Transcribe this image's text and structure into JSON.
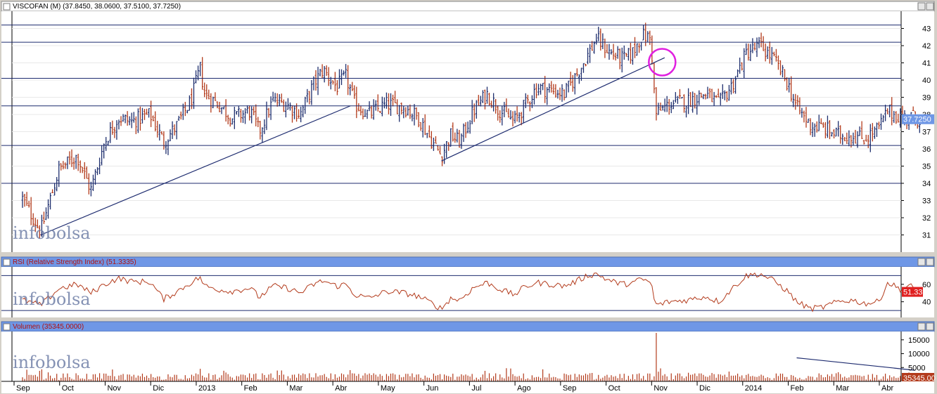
{
  "colors": {
    "up": "#1f2f6e",
    "down": "#b33b1c",
    "hline": "#1c2a6e",
    "trend": "#1c2a6e",
    "rsi": "#b33b1c",
    "volume": "#b33b1c",
    "circle": "#e020e0",
    "panel_header": "#6f97e6",
    "last_price_bg": "#6f97e6",
    "last_rsi_bg": "#e02020"
  },
  "price_panel": {
    "header": "VISCOFAN (M) (37.8450, 38.0600, 37.5100, 37.7250)",
    "last_value": "37.7250",
    "watermark": "infobolsa"
  },
  "rsi_panel": {
    "header": "RSI (Relative Strength Index) (51.3335)",
    "last_value": "51.33",
    "watermark": "infobolsa"
  },
  "volume_panel": {
    "header": "Volumen (35345.0000)",
    "last_value": "35345.00",
    "watermark": "infobolsa"
  },
  "x_labels": [
    "Sep",
    "Oct",
    "Nov",
    "Dic",
    "2013",
    "Feb",
    "Mar",
    "Abr",
    "May",
    "Jun",
    "Jul",
    "Ago",
    "Sep",
    "Oct",
    "Nov",
    "Dic",
    "2014",
    "Feb",
    "Mar",
    "Abr"
  ],
  "chart_data": [
    {
      "type": "ohlc",
      "title": "VISCOFAN (M) (37.8450, 38.0600, 37.5100, 37.7250)",
      "x": [
        "Sep",
        "Oct",
        "Nov",
        "Dic",
        "2013",
        "Feb",
        "Mar",
        "Abr",
        "May",
        "Jun",
        "Jul",
        "Ago",
        "Sep",
        "Oct",
        "Nov",
        "Dic",
        "2014",
        "Feb",
        "Mar",
        "Abr"
      ],
      "x_units": "month (daily bars, Sep 2012 – Abr 2014)",
      "ylim": [
        30,
        44
      ],
      "y_ticks": [
        31,
        32,
        33,
        34,
        35,
        36,
        37,
        38,
        39,
        40,
        41,
        42,
        43
      ],
      "y_axis_side": "right",
      "last": 37.725,
      "close_path": [
        {
          "x": 0.0,
          "y": 33.1
        },
        {
          "x": 0.4,
          "y": 31.2
        },
        {
          "x": 0.8,
          "y": 34.8
        },
        {
          "x": 1.2,
          "y": 35.6
        },
        {
          "x": 1.5,
          "y": 33.6
        },
        {
          "x": 1.8,
          "y": 36.4
        },
        {
          "x": 2.1,
          "y": 37.8
        },
        {
          "x": 2.4,
          "y": 37.6
        },
        {
          "x": 2.8,
          "y": 38.0
        },
        {
          "x": 3.1,
          "y": 36.4
        },
        {
          "x": 3.4,
          "y": 37.4
        },
        {
          "x": 3.7,
          "y": 38.8
        },
        {
          "x": 3.9,
          "y": 40.7
        },
        {
          "x": 4.0,
          "y": 39.2
        },
        {
          "x": 4.3,
          "y": 38.6
        },
        {
          "x": 4.6,
          "y": 37.8
        },
        {
          "x": 5.0,
          "y": 38.2
        },
        {
          "x": 5.2,
          "y": 37.0
        },
        {
          "x": 5.5,
          "y": 38.8
        },
        {
          "x": 5.8,
          "y": 38.6
        },
        {
          "x": 6.1,
          "y": 38.0
        },
        {
          "x": 6.4,
          "y": 39.8
        },
        {
          "x": 6.6,
          "y": 40.6
        },
        {
          "x": 6.9,
          "y": 39.6
        },
        {
          "x": 7.1,
          "y": 40.2
        },
        {
          "x": 7.3,
          "y": 38.6
        },
        {
          "x": 7.6,
          "y": 38.0
        },
        {
          "x": 8.0,
          "y": 38.6
        },
        {
          "x": 8.4,
          "y": 38.4
        },
        {
          "x": 8.7,
          "y": 37.8
        },
        {
          "x": 9.0,
          "y": 36.4
        },
        {
          "x": 9.2,
          "y": 35.6
        },
        {
          "x": 9.4,
          "y": 36.8
        },
        {
          "x": 9.6,
          "y": 36.4
        },
        {
          "x": 9.9,
          "y": 38.2
        },
        {
          "x": 10.2,
          "y": 39.2
        },
        {
          "x": 10.5,
          "y": 38.2
        },
        {
          "x": 10.8,
          "y": 37.6
        },
        {
          "x": 11.0,
          "y": 38.4
        },
        {
          "x": 11.3,
          "y": 39.6
        },
        {
          "x": 11.6,
          "y": 39.4
        },
        {
          "x": 11.9,
          "y": 39.2
        },
        {
          "x": 12.1,
          "y": 40.0
        },
        {
          "x": 12.4,
          "y": 41.4
        },
        {
          "x": 12.6,
          "y": 42.4
        },
        {
          "x": 12.9,
          "y": 41.6
        },
        {
          "x": 13.2,
          "y": 41.2
        },
        {
          "x": 13.4,
          "y": 41.6
        },
        {
          "x": 13.6,
          "y": 42.6
        },
        {
          "x": 13.8,
          "y": 42.4
        },
        {
          "x": 13.9,
          "y": 38.0
        },
        {
          "x": 14.2,
          "y": 38.6
        },
        {
          "x": 14.6,
          "y": 38.8
        },
        {
          "x": 15.0,
          "y": 39.2
        },
        {
          "x": 15.3,
          "y": 38.6
        },
        {
          "x": 15.6,
          "y": 39.8
        },
        {
          "x": 15.9,
          "y": 41.6
        },
        {
          "x": 16.2,
          "y": 42.0
        },
        {
          "x": 16.5,
          "y": 41.2
        },
        {
          "x": 16.8,
          "y": 39.8
        },
        {
          "x": 17.0,
          "y": 38.4
        },
        {
          "x": 17.3,
          "y": 37.4
        },
        {
          "x": 17.6,
          "y": 37.2
        },
        {
          "x": 17.9,
          "y": 36.8
        },
        {
          "x": 18.2,
          "y": 36.8
        },
        {
          "x": 18.5,
          "y": 36.6
        },
        {
          "x": 18.8,
          "y": 37.2
        },
        {
          "x": 19.0,
          "y": 38.2
        },
        {
          "x": 19.3,
          "y": 37.8
        },
        {
          "x": 19.5,
          "y": 37.9
        },
        {
          "x": 19.7,
          "y": 37.725
        }
      ],
      "horizontal_lines": [
        43.2,
        42.2,
        40.1,
        38.5,
        36.2,
        34.0
      ],
      "trendlines": [
        {
          "from": {
            "x": 0.4,
            "y": 31.0
          },
          "to": {
            "x": 7.2,
            "y": 38.5
          }
        },
        {
          "from": {
            "x": 9.2,
            "y": 35.3
          },
          "to": {
            "x": 14.1,
            "y": 41.3
          }
        }
      ],
      "annotation_circle": {
        "x": 14.0,
        "y": 41.0
      }
    },
    {
      "type": "line",
      "title": "RSI (Relative Strength Index) (51.3335)",
      "x": [
        "Sep",
        "Oct",
        "Nov",
        "Dic",
        "2013",
        "Feb",
        "Mar",
        "Abr",
        "May",
        "Jun",
        "Jul",
        "Ago",
        "Sep",
        "Oct",
        "Nov",
        "Dic",
        "2014",
        "Feb",
        "Mar",
        "Abr"
      ],
      "ylim": [
        22,
        80
      ],
      "y_ticks": [
        40,
        60
      ],
      "horizontal_lines": [
        70,
        30
      ],
      "last": 51.3335,
      "values_path": [
        {
          "x": 0.0,
          "y": 42
        },
        {
          "x": 0.4,
          "y": 36
        },
        {
          "x": 0.8,
          "y": 55
        },
        {
          "x": 1.2,
          "y": 60
        },
        {
          "x": 1.5,
          "y": 50
        },
        {
          "x": 1.8,
          "y": 60
        },
        {
          "x": 2.1,
          "y": 67
        },
        {
          "x": 2.4,
          "y": 63
        },
        {
          "x": 2.8,
          "y": 63
        },
        {
          "x": 3.1,
          "y": 43
        },
        {
          "x": 3.4,
          "y": 52
        },
        {
          "x": 3.7,
          "y": 62
        },
        {
          "x": 3.9,
          "y": 68
        },
        {
          "x": 4.0,
          "y": 58
        },
        {
          "x": 4.3,
          "y": 54
        },
        {
          "x": 4.6,
          "y": 52
        },
        {
          "x": 5.0,
          "y": 56
        },
        {
          "x": 5.2,
          "y": 45
        },
        {
          "x": 5.5,
          "y": 58
        },
        {
          "x": 5.8,
          "y": 56
        },
        {
          "x": 6.1,
          "y": 50
        },
        {
          "x": 6.4,
          "y": 60
        },
        {
          "x": 6.6,
          "y": 64
        },
        {
          "x": 6.9,
          "y": 58
        },
        {
          "x": 7.1,
          "y": 60
        },
        {
          "x": 7.3,
          "y": 48
        },
        {
          "x": 7.6,
          "y": 44
        },
        {
          "x": 8.0,
          "y": 52
        },
        {
          "x": 8.4,
          "y": 50
        },
        {
          "x": 8.7,
          "y": 46
        },
        {
          "x": 9.0,
          "y": 38
        },
        {
          "x": 9.2,
          "y": 32
        },
        {
          "x": 9.4,
          "y": 44
        },
        {
          "x": 9.6,
          "y": 42
        },
        {
          "x": 9.9,
          "y": 56
        },
        {
          "x": 10.2,
          "y": 62
        },
        {
          "x": 10.5,
          "y": 54
        },
        {
          "x": 10.8,
          "y": 48
        },
        {
          "x": 11.0,
          "y": 56
        },
        {
          "x": 11.3,
          "y": 62
        },
        {
          "x": 11.6,
          "y": 60
        },
        {
          "x": 11.9,
          "y": 58
        },
        {
          "x": 12.1,
          "y": 62
        },
        {
          "x": 12.4,
          "y": 70
        },
        {
          "x": 12.6,
          "y": 72
        },
        {
          "x": 12.9,
          "y": 64
        },
        {
          "x": 13.2,
          "y": 60
        },
        {
          "x": 13.4,
          "y": 62
        },
        {
          "x": 13.6,
          "y": 66
        },
        {
          "x": 13.8,
          "y": 62
        },
        {
          "x": 13.9,
          "y": 36
        },
        {
          "x": 14.2,
          "y": 40
        },
        {
          "x": 14.6,
          "y": 42
        },
        {
          "x": 15.0,
          "y": 46
        },
        {
          "x": 15.3,
          "y": 40
        },
        {
          "x": 15.6,
          "y": 56
        },
        {
          "x": 15.9,
          "y": 70
        },
        {
          "x": 16.2,
          "y": 72
        },
        {
          "x": 16.5,
          "y": 64
        },
        {
          "x": 16.8,
          "y": 52
        },
        {
          "x": 17.0,
          "y": 40
        },
        {
          "x": 17.3,
          "y": 32
        },
        {
          "x": 17.6,
          "y": 34
        },
        {
          "x": 17.9,
          "y": 40
        },
        {
          "x": 18.2,
          "y": 42
        },
        {
          "x": 18.5,
          "y": 38
        },
        {
          "x": 18.8,
          "y": 40
        },
        {
          "x": 19.0,
          "y": 62
        },
        {
          "x": 19.3,
          "y": 54
        },
        {
          "x": 19.5,
          "y": 58
        },
        {
          "x": 19.7,
          "y": 51.3
        }
      ]
    },
    {
      "type": "bar",
      "title": "Volumen (35345.0000)",
      "x": [
        "Sep",
        "Oct",
        "Nov",
        "Dic",
        "2013",
        "Feb",
        "Mar",
        "Abr",
        "May",
        "Jun",
        "Jul",
        "Ago",
        "Sep",
        "Oct",
        "Nov",
        "Dic",
        "2014",
        "Feb",
        "Mar",
        "Abr"
      ],
      "ylim": [
        0,
        18000
      ],
      "y_ticks": [
        5000,
        10000,
        15000
      ],
      "last": 35345,
      "typical_range": [
        500,
        4000
      ],
      "spike": {
        "x": 13.9,
        "y": 17500
      },
      "trendline": {
        "from": {
          "x": 17.0,
          "y": 8500
        },
        "to": {
          "x": 19.6,
          "y": 4000
        }
      }
    }
  ]
}
